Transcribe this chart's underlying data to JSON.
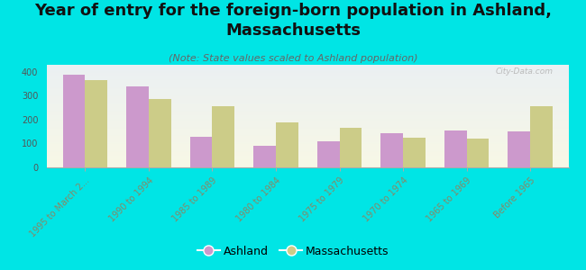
{
  "title": "Year of entry for the foreign-born population in Ashland,\nMassachusetts",
  "subtitle": "(Note: State values scaled to Ashland population)",
  "categories": [
    "1995 to March 2...",
    "1990 to 1994",
    "1985 to 1989",
    "1980 to 1984",
    "1975 to 1979",
    "1970 to 1974",
    "1965 to 1969",
    "Before 1965"
  ],
  "ashland_values": [
    390,
    340,
    130,
    90,
    110,
    145,
    155,
    150
  ],
  "massachusetts_values": [
    365,
    285,
    255,
    190,
    165,
    125,
    120,
    255
  ],
  "ashland_color": "#cc99cc",
  "massachusetts_color": "#cccc88",
  "background_color": "#00e5e5",
  "ylim": [
    0,
    430
  ],
  "yticks": [
    0,
    100,
    200,
    300,
    400
  ],
  "bar_width": 0.35,
  "title_fontsize": 13,
  "subtitle_fontsize": 8,
  "tick_label_fontsize": 7,
  "watermark": "City-Data.com",
  "legend_ashland": "Ashland",
  "legend_massachusetts": "Massachusetts"
}
